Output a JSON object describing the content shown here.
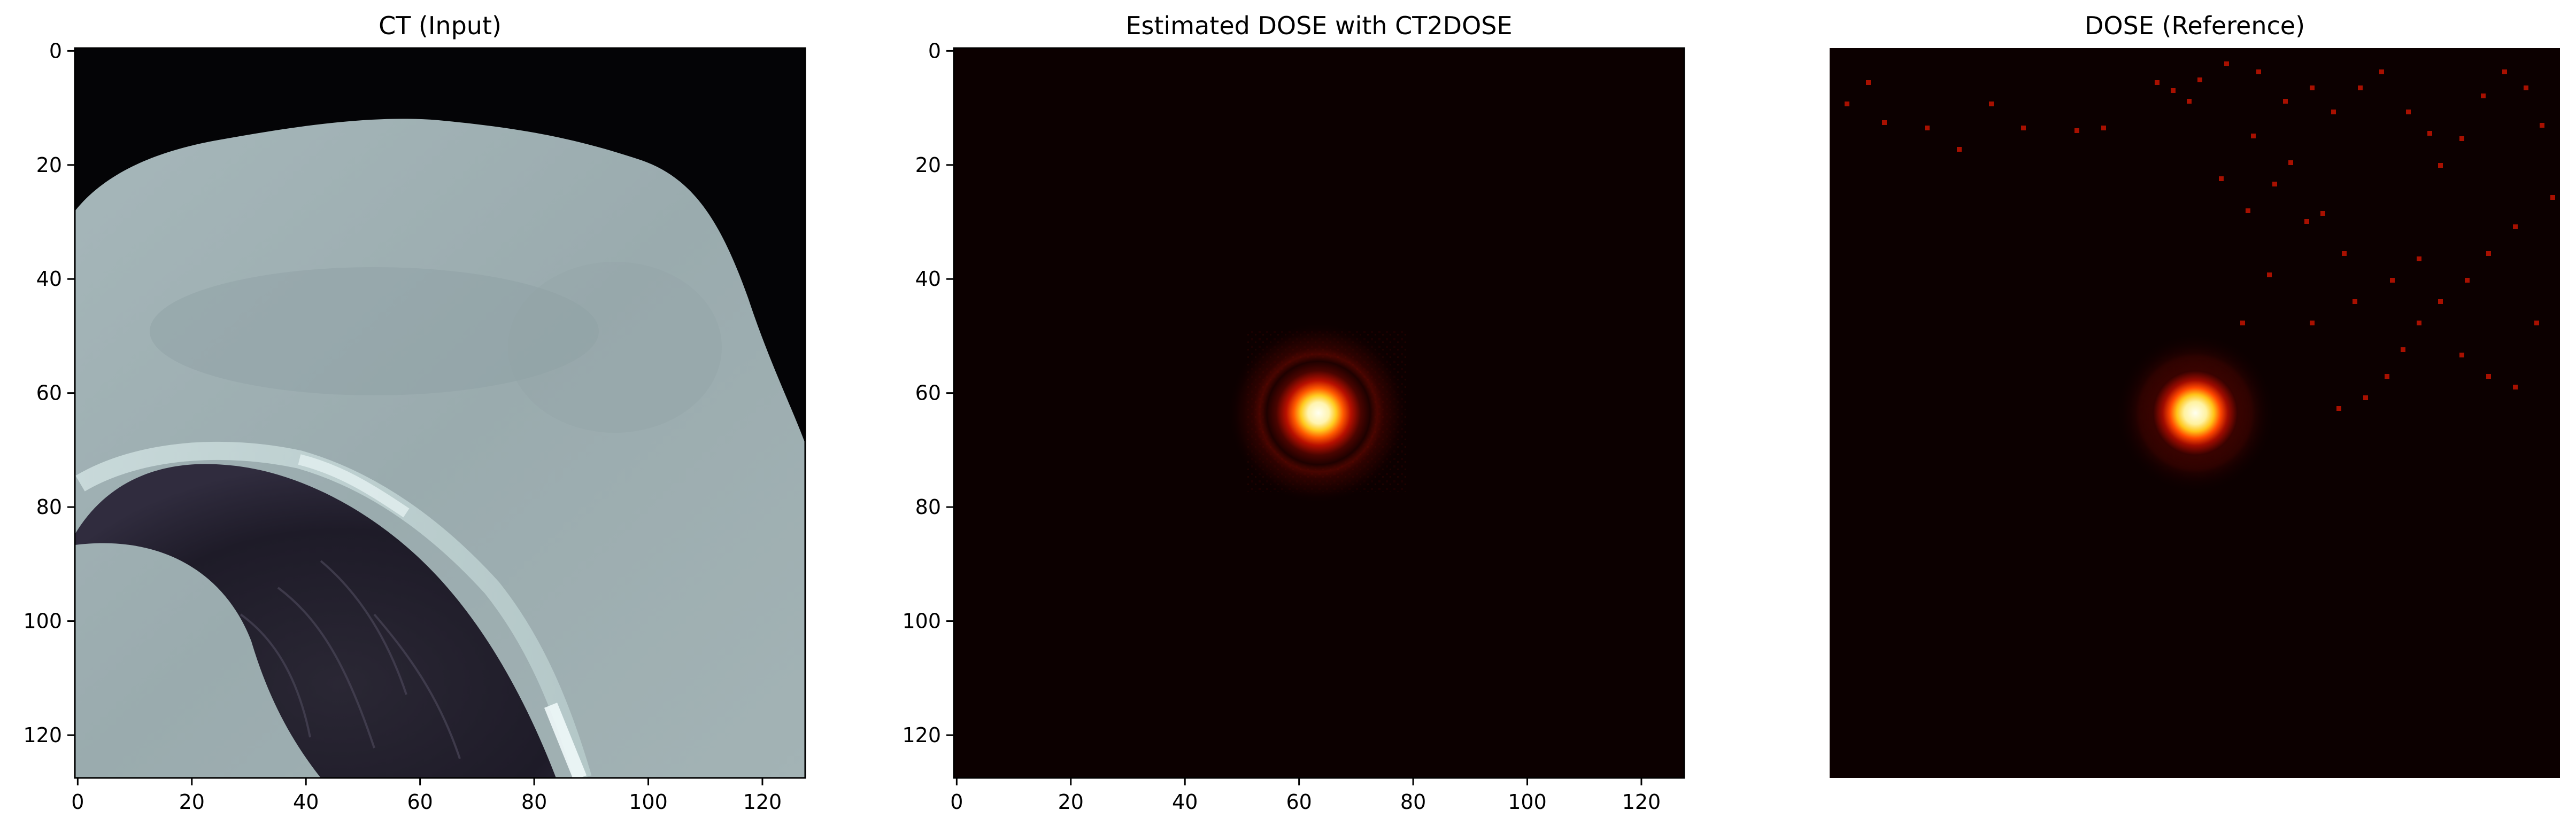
{
  "panels": [
    {
      "id": "ct",
      "title": "CT (Input)",
      "x_ticks": [
        "0",
        "20",
        "40",
        "60",
        "80",
        "100",
        "120"
      ],
      "y_ticks": [
        "0",
        "20",
        "40",
        "60",
        "80",
        "100",
        "120"
      ],
      "colormap": "bone"
    },
    {
      "id": "estimated",
      "title": "Estimated DOSE with CT2DOSE",
      "x_ticks": [
        "0",
        "20",
        "40",
        "60",
        "80",
        "100",
        "120"
      ],
      "y_ticks": [
        "0",
        "20",
        "40",
        "60",
        "80",
        "100",
        "120"
      ],
      "colormap": "hot"
    },
    {
      "id": "reference",
      "title": "DOSE (Reference)",
      "colormap": "hot"
    }
  ],
  "colors": {
    "dose_background": "#0c0000",
    "dose_hot_core": "#fffde0",
    "dose_spot_red": "#c01000",
    "ct_soft_tissue": "#9fb0b3",
    "ct_air": "#040406",
    "ct_lung": "#23202e"
  }
}
